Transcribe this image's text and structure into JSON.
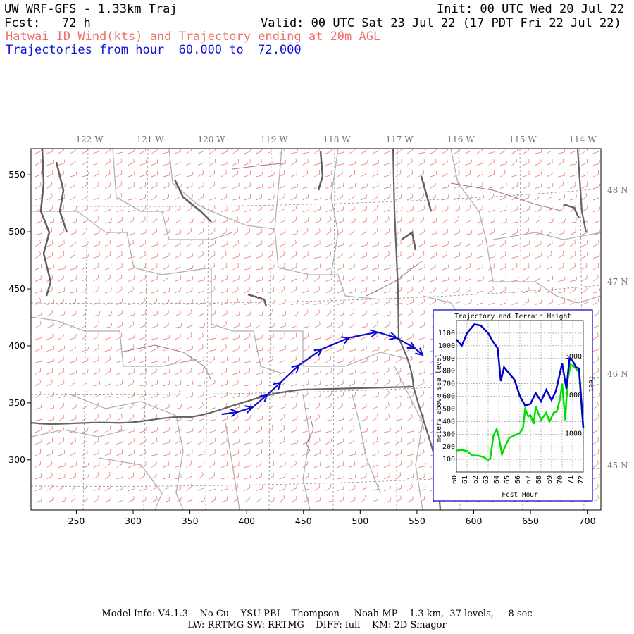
{
  "header": {
    "title": "UW WRF-GFS - 1.33km Traj",
    "init": "Init: 00 UTC Wed 20 Jul 22",
    "fcst": "Fcst:   72 h",
    "valid": "Valid: 00 UTC Sat 23 Jul 22 (17 PDT Fri 22 Jul 22)",
    "subtitle": "Hatwai ID Wind(kts) and Trajectory ending at 20m AGL",
    "traj_range": "Trajectories from hour  60.000 to  72.000"
  },
  "map": {
    "x_ticks": [
      "250",
      "300",
      "350",
      "400",
      "450",
      "500",
      "550",
      "600",
      "650",
      "700"
    ],
    "x_tick_values": [
      250,
      300,
      350,
      400,
      450,
      500,
      550,
      600,
      650,
      700
    ],
    "y_ticks": [
      "300",
      "350",
      "400",
      "450",
      "500",
      "550"
    ],
    "y_tick_values": [
      300,
      350,
      400,
      450,
      500,
      550
    ],
    "x_range": [
      210,
      712
    ],
    "y_range": [
      256,
      573
    ],
    "lon_labels": [
      "122 W",
      "121 W",
      "120 W",
      "119 W",
      "118 W",
      "117 W",
      "116 W",
      "115 W",
      "114 W"
    ],
    "lat_labels": [
      "48 N",
      "47 N",
      "46 N",
      "45 N"
    ],
    "colors": {
      "wind": "#f06a6a",
      "county": "#b0b0b0",
      "state": "#606060",
      "lakes": "#a070a0",
      "trajectory": "#0a0ad0"
    },
    "trajectory": [
      [
        378,
        340
      ],
      [
        392,
        342
      ],
      [
        405,
        346
      ],
      [
        418,
        357
      ],
      [
        430,
        368
      ],
      [
        446,
        383
      ],
      [
        466,
        397
      ],
      [
        490,
        407
      ],
      [
        515,
        412
      ],
      [
        532,
        407
      ],
      [
        548,
        398
      ],
      [
        555,
        392
      ]
    ]
  },
  "inset": {
    "title": "Trajectory and Terrain Height",
    "ylabel_left": "meters above sea level",
    "ylabel_right": "feet",
    "xlabel": "Fcst Hour",
    "left_ticks": [
      "100",
      "200",
      "300",
      "400",
      "500",
      "600",
      "700",
      "800",
      "900",
      "1000",
      "1100"
    ],
    "left_tick_values": [
      100,
      200,
      300,
      400,
      500,
      600,
      700,
      800,
      900,
      1000,
      1100
    ],
    "right_ticks": [
      "1000",
      "2000",
      "3000"
    ],
    "x_ticks": [
      "60",
      "61",
      "62",
      "63",
      "64",
      "65",
      "66",
      "67",
      "68",
      "69",
      "70",
      "71",
      "72"
    ],
    "x_tick_values": [
      60,
      61,
      62,
      63,
      64,
      65,
      66,
      67,
      68,
      69,
      70,
      71,
      72
    ],
    "trajectory_height": [
      [
        60,
        1050
      ],
      [
        60.5,
        1000
      ],
      [
        61,
        1100
      ],
      [
        61.7,
        1170
      ],
      [
        62.3,
        1160
      ],
      [
        63,
        1100
      ],
      [
        63.4,
        1040
      ],
      [
        63.9,
        980
      ],
      [
        64.2,
        720
      ],
      [
        64.5,
        830
      ],
      [
        65,
        780
      ],
      [
        65.5,
        730
      ],
      [
        66,
        600
      ],
      [
        66.5,
        525
      ],
      [
        67,
        540
      ],
      [
        67.5,
        625
      ],
      [
        68,
        560
      ],
      [
        68.5,
        650
      ],
      [
        69,
        570
      ],
      [
        69.4,
        640
      ],
      [
        70,
        860
      ],
      [
        70.4,
        660
      ],
      [
        70.7,
        900
      ],
      [
        71,
        880
      ],
      [
        71.3,
        830
      ],
      [
        71.6,
        820
      ],
      [
        72,
        350
      ]
    ],
    "terrain_height": [
      [
        60,
        170
      ],
      [
        60.5,
        175
      ],
      [
        61,
        165
      ],
      [
        61.5,
        130
      ],
      [
        62,
        130
      ],
      [
        62.5,
        120
      ],
      [
        63,
        95
      ],
      [
        63.2,
        110
      ],
      [
        63.5,
        290
      ],
      [
        63.8,
        340
      ],
      [
        64,
        280
      ],
      [
        64.3,
        140
      ],
      [
        64.7,
        220
      ],
      [
        65,
        270
      ],
      [
        65.5,
        290
      ],
      [
        66,
        310
      ],
      [
        66.3,
        350
      ],
      [
        66.5,
        500
      ],
      [
        66.8,
        440
      ],
      [
        67,
        450
      ],
      [
        67.3,
        380
      ],
      [
        67.5,
        520
      ],
      [
        68,
        410
      ],
      [
        68.5,
        470
      ],
      [
        68.8,
        400
      ],
      [
        69.2,
        470
      ],
      [
        69.5,
        480
      ],
      [
        69.8,
        580
      ],
      [
        70,
        700
      ],
      [
        70.3,
        410
      ],
      [
        70.5,
        720
      ],
      [
        70.8,
        850
      ],
      [
        71.2,
        830
      ],
      [
        71.6,
        790
      ],
      [
        72,
        350
      ]
    ]
  },
  "footer": {
    "line1": "Model Info: V4.1.3    No Cu    YSU PBL   Thompson     Noah-MP    1.3 km,  37 levels,     8 sec",
    "line2": "LW: RRTMG SW: RRTMG    DIFF: full    KM: 2D Smagor"
  }
}
